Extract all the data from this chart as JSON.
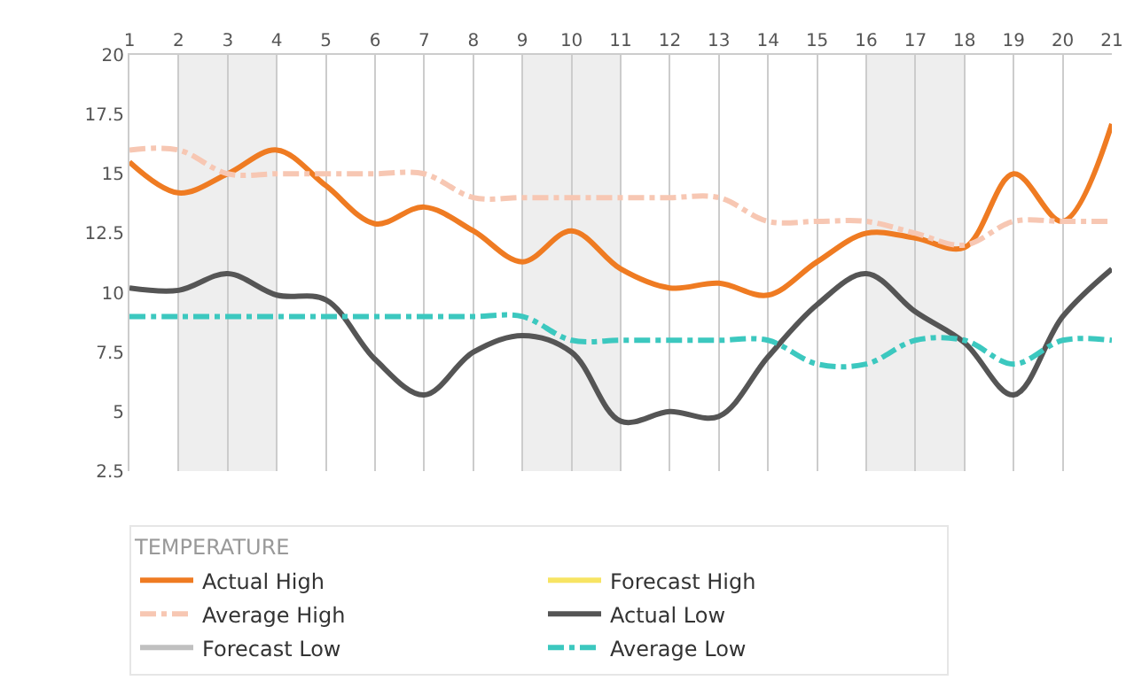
{
  "chart_data": {
    "type": "line",
    "legend_title": "TEMPERATURE",
    "x": [
      1,
      2,
      3,
      4,
      5,
      6,
      7,
      8,
      9,
      10,
      11,
      12,
      13,
      14,
      15,
      16,
      17,
      18,
      19,
      20,
      21
    ],
    "series": [
      {
        "name": "Actual High",
        "color": "#ef7b22",
        "values": [
          15.5,
          14.2,
          15,
          16,
          14.5,
          12.9,
          13.6,
          12.6,
          11.3,
          12.6,
          11,
          10.2,
          10.4,
          9.9,
          11.3,
          12.5,
          12.3,
          11.9,
          15,
          13,
          17.1
        ]
      },
      {
        "name": "Forecast High",
        "color": "#f7e463",
        "values": [
          null,
          null,
          null,
          null,
          null,
          null,
          null,
          null,
          null,
          null,
          null,
          null,
          null,
          null,
          null,
          null,
          null,
          null,
          null,
          null,
          null
        ]
      },
      {
        "name": "Average High",
        "color": "#f7c7b3",
        "line_style": "dashed",
        "values": [
          16,
          16,
          15,
          15,
          15,
          15,
          15,
          14,
          14,
          14,
          14,
          14,
          14,
          13,
          13,
          13,
          12.5,
          12,
          13,
          13,
          13
        ]
      },
      {
        "name": "Actual Low",
        "color": "#555555",
        "values": [
          10.2,
          10.1,
          10.8,
          9.9,
          9.7,
          7.2,
          5.7,
          7.5,
          8.2,
          7.5,
          4.6,
          5,
          4.8,
          7.3,
          9.5,
          10.8,
          9.2,
          7.9,
          5.7,
          9,
          11
        ]
      },
      {
        "name": "Forecast Low",
        "color": "#c0c0c0",
        "values": [
          null,
          null,
          null,
          null,
          null,
          null,
          null,
          null,
          null,
          null,
          null,
          null,
          null,
          null,
          null,
          null,
          null,
          null,
          null,
          null,
          null
        ]
      },
      {
        "name": "Average Low",
        "color": "#3cc8bf",
        "line_style": "dashed",
        "values": [
          9,
          9,
          9,
          9,
          9,
          9,
          9,
          9,
          9,
          8,
          8,
          8,
          8,
          8,
          7,
          7,
          8,
          8,
          7,
          8,
          8
        ]
      }
    ],
    "xlim": [
      1,
      21
    ],
    "xticks": [
      1,
      2,
      3,
      4,
      5,
      6,
      7,
      8,
      9,
      10,
      11,
      12,
      13,
      14,
      15,
      16,
      17,
      18,
      19,
      20,
      21
    ],
    "ylim": [
      2.5,
      20
    ],
    "yticks": [
      2.5,
      5,
      7.5,
      10,
      12.5,
      15,
      17.5,
      20
    ],
    "bands": [
      {
        "axis": "x",
        "from": 2,
        "to": 4,
        "color": "#eeeeee"
      },
      {
        "axis": "x",
        "from": 9,
        "to": 11,
        "color": "#eeeeee"
      },
      {
        "axis": "x",
        "from": 16,
        "to": 18,
        "color": "#eeeeee"
      }
    ],
    "grid": "x",
    "legend": "bottom"
  }
}
